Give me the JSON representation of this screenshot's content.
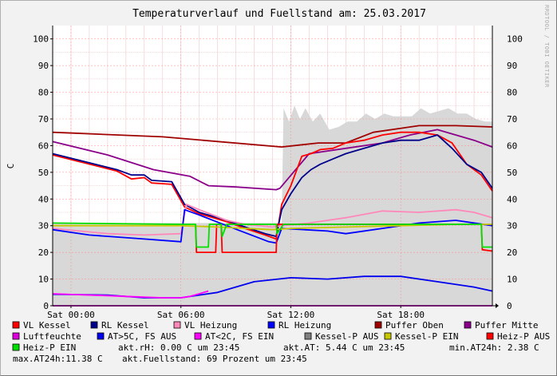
{
  "chart_data": {
    "type": "line",
    "title": "Temperaturverlauf und Fuellstand am: 25.03.2017",
    "ylabel": "C",
    "watermark": "RRDTOOL / TOBI OETIKER",
    "ylim": [
      0,
      105
    ],
    "xlim": [
      0,
      24
    ],
    "y_ticks": [
      0,
      10,
      20,
      30,
      40,
      50,
      60,
      70,
      80,
      90,
      100
    ],
    "x_ticks": [
      {
        "x": 1,
        "label": "Sat 00:00"
      },
      {
        "x": 7,
        "label": "Sat 06:00"
      },
      {
        "x": 13,
        "label": "Sat 12:00"
      },
      {
        "x": 19,
        "label": "Sat 18:00"
      }
    ],
    "grid": true,
    "series": [
      {
        "name": "Kessel-P AUS",
        "color": "#d8d8d8",
        "style": "area",
        "points": [
          [
            0,
            31
          ],
          [
            12.5,
            31
          ],
          [
            12.6,
            74
          ],
          [
            12.9,
            69
          ],
          [
            13.2,
            75
          ],
          [
            13.5,
            70
          ],
          [
            13.8,
            74
          ],
          [
            14.2,
            69
          ],
          [
            14.6,
            72
          ],
          [
            15.1,
            66
          ],
          [
            15.6,
            67
          ],
          [
            16.1,
            69
          ],
          [
            16.6,
            69
          ],
          [
            17.1,
            72
          ],
          [
            17.6,
            70
          ],
          [
            18.1,
            72
          ],
          [
            18.6,
            71
          ],
          [
            19.1,
            71
          ],
          [
            19.6,
            71
          ],
          [
            20.1,
            74
          ],
          [
            20.6,
            72
          ],
          [
            21.1,
            73
          ],
          [
            21.6,
            74
          ],
          [
            22.1,
            72
          ],
          [
            22.6,
            72
          ],
          [
            23.1,
            70
          ],
          [
            23.6,
            69
          ],
          [
            24,
            69
          ]
        ]
      },
      {
        "name": "Puffer Oben",
        "color": "#a00000",
        "points": [
          [
            0,
            65
          ],
          [
            6,
            63.3
          ],
          [
            12.5,
            59.5
          ],
          [
            14.5,
            61
          ],
          [
            16,
            61
          ],
          [
            17.5,
            65
          ],
          [
            20,
            67.5
          ],
          [
            22,
            67.5
          ],
          [
            24,
            67
          ]
        ]
      },
      {
        "name": "Puffer Mitte",
        "color": "#8b008b",
        "points": [
          [
            0,
            61.5
          ],
          [
            3,
            56.5
          ],
          [
            5.5,
            51
          ],
          [
            7.5,
            48.5
          ],
          [
            8.5,
            45
          ],
          [
            10,
            44.5
          ],
          [
            12.2,
            43.5
          ],
          [
            12.4,
            44
          ],
          [
            14,
            57
          ],
          [
            16,
            59
          ],
          [
            18,
            61
          ],
          [
            19.5,
            64
          ],
          [
            21,
            66
          ],
          [
            23,
            62
          ],
          [
            24,
            59.5
          ]
        ]
      },
      {
        "name": "VL Kessel",
        "color": "#ff0000",
        "points": [
          [
            0,
            56.5
          ],
          [
            3.5,
            50.5
          ],
          [
            4.3,
            47.5
          ],
          [
            5,
            48
          ],
          [
            5.4,
            46
          ],
          [
            6.5,
            45.5
          ],
          [
            7.2,
            37
          ],
          [
            8,
            34.5
          ],
          [
            9.5,
            31.5
          ],
          [
            10.5,
            29
          ],
          [
            11.6,
            26.5
          ],
          [
            12.2,
            25
          ],
          [
            12.5,
            38
          ],
          [
            13,
            45
          ],
          [
            13.6,
            56
          ],
          [
            14.1,
            57
          ],
          [
            14.6,
            58.5
          ],
          [
            15.3,
            59
          ],
          [
            16,
            61
          ],
          [
            17,
            62
          ],
          [
            18,
            64
          ],
          [
            19,
            65
          ],
          [
            20,
            65
          ],
          [
            21,
            64
          ],
          [
            21.8,
            61
          ],
          [
            22.6,
            53
          ],
          [
            23.4,
            49
          ],
          [
            24,
            43
          ]
        ]
      },
      {
        "name": "RL Kessel",
        "color": "#00008b",
        "points": [
          [
            0,
            57
          ],
          [
            3.5,
            51
          ],
          [
            4.3,
            49
          ],
          [
            5,
            49
          ],
          [
            5.4,
            47
          ],
          [
            6.5,
            46.5
          ],
          [
            7.2,
            38
          ],
          [
            8,
            35
          ],
          [
            9.5,
            32
          ],
          [
            10.5,
            29.5
          ],
          [
            11.6,
            27
          ],
          [
            12.2,
            26
          ],
          [
            12.5,
            36
          ],
          [
            13,
            42
          ],
          [
            13.6,
            48
          ],
          [
            14.1,
            51
          ],
          [
            14.6,
            53
          ],
          [
            15.3,
            55
          ],
          [
            16,
            57
          ],
          [
            17,
            59
          ],
          [
            18,
            61
          ],
          [
            19,
            62
          ],
          [
            20,
            62
          ],
          [
            21,
            64
          ],
          [
            21.8,
            59
          ],
          [
            22.6,
            53
          ],
          [
            23.4,
            50
          ],
          [
            24,
            44
          ]
        ]
      },
      {
        "name": "VL Heizung",
        "color": "#ff88bb",
        "points": [
          [
            0,
            29
          ],
          [
            3,
            27
          ],
          [
            5,
            26.5
          ],
          [
            7,
            27
          ],
          [
            7.3,
            38
          ],
          [
            8,
            36
          ],
          [
            9.5,
            32
          ],
          [
            10.5,
            30.5
          ],
          [
            12,
            29.5
          ],
          [
            12.5,
            30
          ],
          [
            14,
            31
          ],
          [
            16,
            33
          ],
          [
            18,
            35.5
          ],
          [
            20,
            35
          ],
          [
            22,
            36
          ],
          [
            23,
            35
          ],
          [
            24,
            33
          ]
        ]
      },
      {
        "name": "RL Heizung",
        "color": "#0000ff",
        "points": [
          [
            0,
            28.5
          ],
          [
            2,
            26.5
          ],
          [
            5,
            25
          ],
          [
            7,
            24
          ],
          [
            7.2,
            36
          ],
          [
            8,
            34
          ],
          [
            9.5,
            30
          ],
          [
            11.8,
            24
          ],
          [
            12.2,
            23.5
          ],
          [
            12.5,
            29
          ],
          [
            15,
            28
          ],
          [
            16,
            27
          ],
          [
            18,
            29
          ],
          [
            20,
            31
          ],
          [
            22,
            32
          ],
          [
            24,
            30
          ]
        ]
      },
      {
        "name": "Heiz-P AUS",
        "color": "#ff0000",
        "points": [
          [
            7.8,
            30.5
          ],
          [
            7.85,
            20
          ],
          [
            8.9,
            20
          ],
          [
            8.95,
            30.5
          ],
          [
            9.2,
            30.5
          ],
          [
            9.25,
            20
          ],
          [
            12.2,
            20
          ],
          [
            12.25,
            30.5
          ],
          [
            23.4,
            30.5
          ],
          [
            23.45,
            21
          ],
          [
            24,
            20.5
          ]
        ]
      },
      {
        "name": "Kessel-P EIN",
        "color": "#c8c800",
        "points": [
          [
            0,
            30
          ],
          [
            7,
            30
          ],
          [
            9,
            29.5
          ],
          [
            12,
            28.5
          ],
          [
            13,
            29
          ],
          [
            16,
            29.5
          ],
          [
            19,
            30
          ],
          [
            22,
            30.5
          ],
          [
            24,
            30.5
          ]
        ]
      },
      {
        "name": "Heiz-P EIN",
        "color": "#00e000",
        "points": [
          [
            0,
            31
          ],
          [
            7,
            30.5
          ],
          [
            7.8,
            30.5
          ],
          [
            7.85,
            22
          ],
          [
            8.5,
            22
          ],
          [
            8.55,
            30.5
          ],
          [
            9.2,
            30.5
          ],
          [
            9.25,
            26
          ],
          [
            9.5,
            30.5
          ],
          [
            12.2,
            30.5
          ],
          [
            12.25,
            27
          ],
          [
            12.6,
            30.5
          ],
          [
            23.4,
            30.5
          ],
          [
            23.45,
            22
          ],
          [
            24,
            22
          ]
        ]
      },
      {
        "name": "Luftfeuchte",
        "color": "#dd00dd",
        "points": [
          [
            0,
            0
          ],
          [
            24,
            0
          ]
        ]
      },
      {
        "name": "AT>5C, FS AUS",
        "color": "#0000ee",
        "points": [
          [
            0,
            4.3
          ],
          [
            3,
            4
          ],
          [
            5,
            3
          ],
          [
            7,
            3
          ],
          [
            9,
            5
          ],
          [
            11,
            9
          ],
          [
            13,
            10.5
          ],
          [
            15,
            10
          ],
          [
            17,
            11
          ],
          [
            19,
            11
          ],
          [
            21,
            9
          ],
          [
            23,
            7
          ],
          [
            24,
            5.5
          ]
        ]
      },
      {
        "name": "AT<2C, FS EIN",
        "color": "#ff00ff",
        "points": [
          [
            0,
            4.5
          ],
          [
            2,
            4
          ],
          [
            4,
            3.5
          ],
          [
            6,
            3
          ],
          [
            7,
            3
          ],
          [
            7.5,
            3.5
          ],
          [
            8,
            4.5
          ],
          [
            8.5,
            5.5
          ]
        ]
      }
    ],
    "legend": [
      {
        "label": "VL Kessel",
        "color": "#ff0000"
      },
      {
        "label": "RL Kessel",
        "color": "#00008b"
      },
      {
        "label": "VL Heizung",
        "color": "#ff88bb"
      },
      {
        "label": "RL Heizung",
        "color": "#0000ff"
      },
      {
        "label": "Puffer Oben",
        "color": "#a00000"
      },
      {
        "label": "Puffer Mitte",
        "color": "#8b008b"
      },
      {
        "label": "Luftfeuchte",
        "color": "#dd00dd"
      },
      {
        "label": "AT>5C, FS AUS",
        "color": "#0000ee"
      },
      {
        "label": "AT<2C, FS EIN",
        "color": "#ff00ff"
      },
      {
        "label": "Kessel-P AUS",
        "color": "#808080"
      },
      {
        "label": "Kessel-P EIN",
        "color": "#c8c800"
      },
      {
        "label": "Heiz-P AUS",
        "color": "#ff0000"
      },
      {
        "label": "Heiz-P EIN",
        "color": "#00e000"
      }
    ],
    "stats": [
      "akt.rH: 0.00 C um 23:45",
      "akt.AT: 5.44 C um 23:45",
      "min.AT24h: 2.38 C",
      "max.AT24h:11.38 C",
      "akt.Fuellstand:   69 Prozent um 23:45"
    ]
  }
}
